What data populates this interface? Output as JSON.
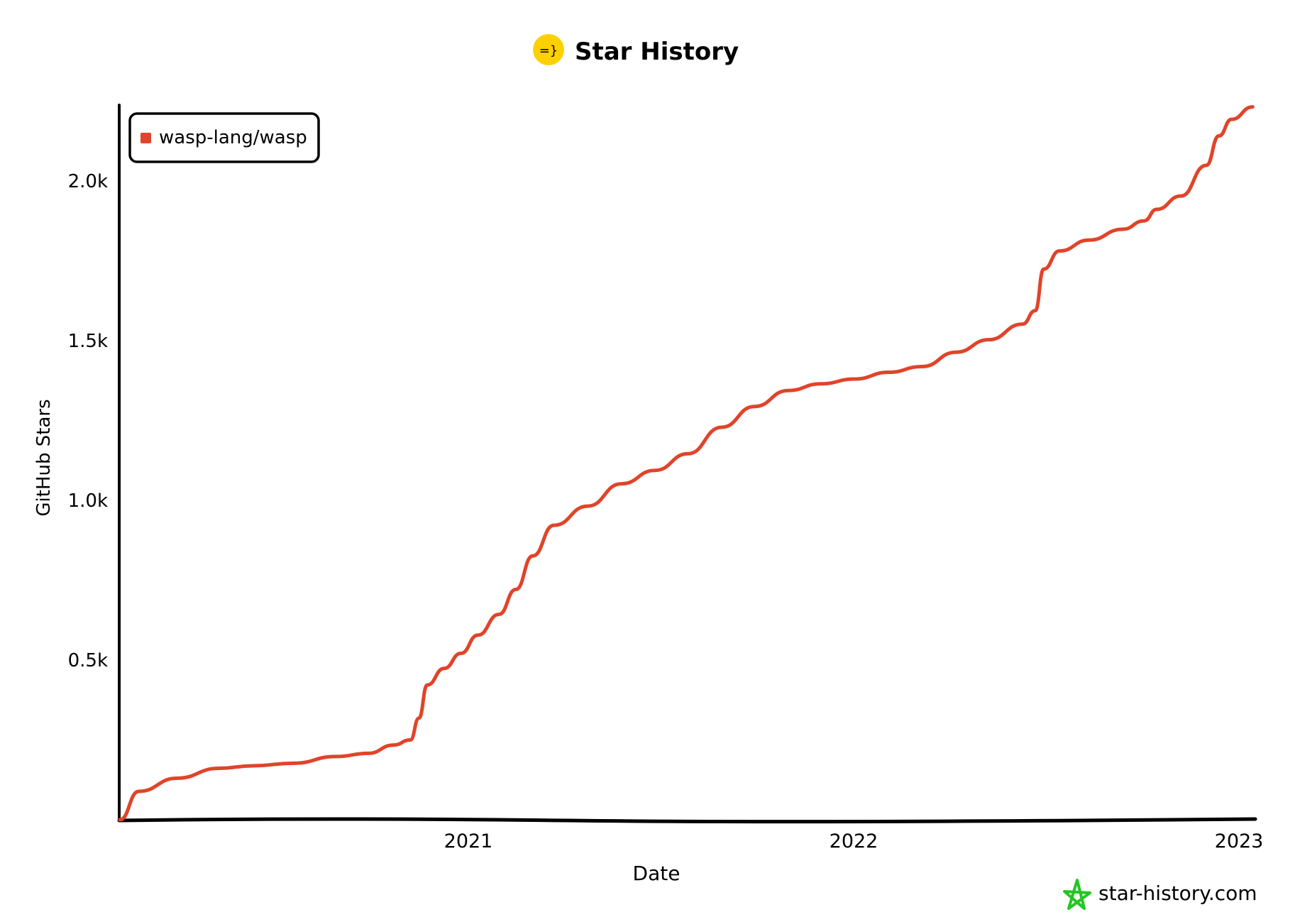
{
  "header": {
    "title": "Star History",
    "logo_text": "=}"
  },
  "watermark": {
    "text": "star-history.com",
    "icon": "star-outline-icon",
    "icon_color": "#22c722",
    "text_color": "#6b7280"
  },
  "chart_data": {
    "type": "line",
    "title": "Star History",
    "xlabel": "Date",
    "ylabel": "GitHub Stars",
    "x_ticks": [
      "2021",
      "2022",
      "2023"
    ],
    "y_ticks": [
      "0.5k",
      "1.0k",
      "1.5k",
      "2.0k"
    ],
    "y_tick_values": [
      500,
      1000,
      1500,
      2000
    ],
    "xlim": [
      "2020-02-05",
      "2023-01-20"
    ],
    "ylim": [
      0,
      2250
    ],
    "grid": false,
    "legend": "top-left",
    "series": [
      {
        "name": "wasp-lang/wasp",
        "color": "#e0442a",
        "x": [
          "2020-02-05",
          "2020-02-23",
          "2020-03-30",
          "2020-05-09",
          "2020-06-10",
          "2020-07-19",
          "2020-08-28",
          "2020-09-28",
          "2020-10-22",
          "2020-11-07",
          "2020-11-15",
          "2020-11-23",
          "2020-12-09",
          "2020-12-25",
          "2021-01-10",
          "2021-01-30",
          "2021-02-15",
          "2021-03-03",
          "2021-03-23",
          "2021-04-24",
          "2021-05-26",
          "2021-06-27",
          "2021-07-28",
          "2021-08-29",
          "2021-09-29",
          "2021-10-31",
          "2021-12-01",
          "2022-01-02",
          "2022-02-03",
          "2022-03-07",
          "2022-04-08",
          "2022-05-09",
          "2022-06-10",
          "2022-06-22",
          "2022-06-30",
          "2022-07-15",
          "2022-08-12",
          "2022-09-13",
          "2022-10-03",
          "2022-10-15",
          "2022-11-07",
          "2022-12-01",
          "2022-12-13",
          "2022-12-25",
          "2023-01-14"
        ],
        "values": [
          0,
          89,
          130,
          161,
          169,
          177,
          198,
          208,
          234,
          250,
          318,
          422,
          474,
          521,
          578,
          643,
          721,
          826,
          922,
          982,
          1052,
          1094,
          1146,
          1229,
          1294,
          1344,
          1365,
          1380,
          1401,
          1419,
          1464,
          1503,
          1552,
          1594,
          1724,
          1781,
          1815,
          1849,
          1875,
          1911,
          1953,
          2049,
          2141,
          2193,
          2232
        ]
      }
    ]
  }
}
